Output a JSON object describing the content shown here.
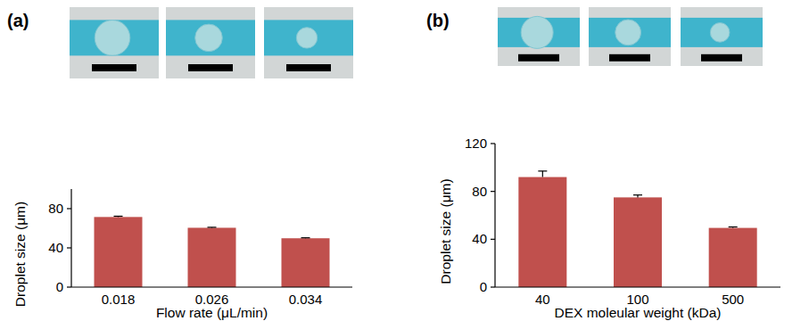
{
  "chart_data": [
    {
      "type": "bar",
      "title": "(a)",
      "categories": [
        "0.018",
        "0.026",
        "0.034"
      ],
      "values": [
        71.5,
        60.5,
        49.8
      ],
      "errors": [
        0.8,
        0.5,
        0.5
      ],
      "color": "#c0504d",
      "xlabel": "Flow rate (μL/min)",
      "ylabel": "Droplet size (μm)",
      "ylim": [
        0,
        100
      ],
      "yticks": [
        0,
        40,
        80
      ],
      "grid": false
    },
    {
      "type": "bar",
      "title": "(b)",
      "categories": [
        "40",
        "100",
        "500"
      ],
      "values": [
        92,
        75,
        49.5
      ],
      "errors": [
        5,
        2,
        0.8
      ],
      "color": "#c0504d",
      "xlabel": "DEX moleular weight (kDa)",
      "ylabel": "Droplet size (μm)",
      "ylim": [
        0,
        120
      ],
      "yticks": [
        0,
        40,
        80,
        120
      ],
      "grid": false
    }
  ]
}
